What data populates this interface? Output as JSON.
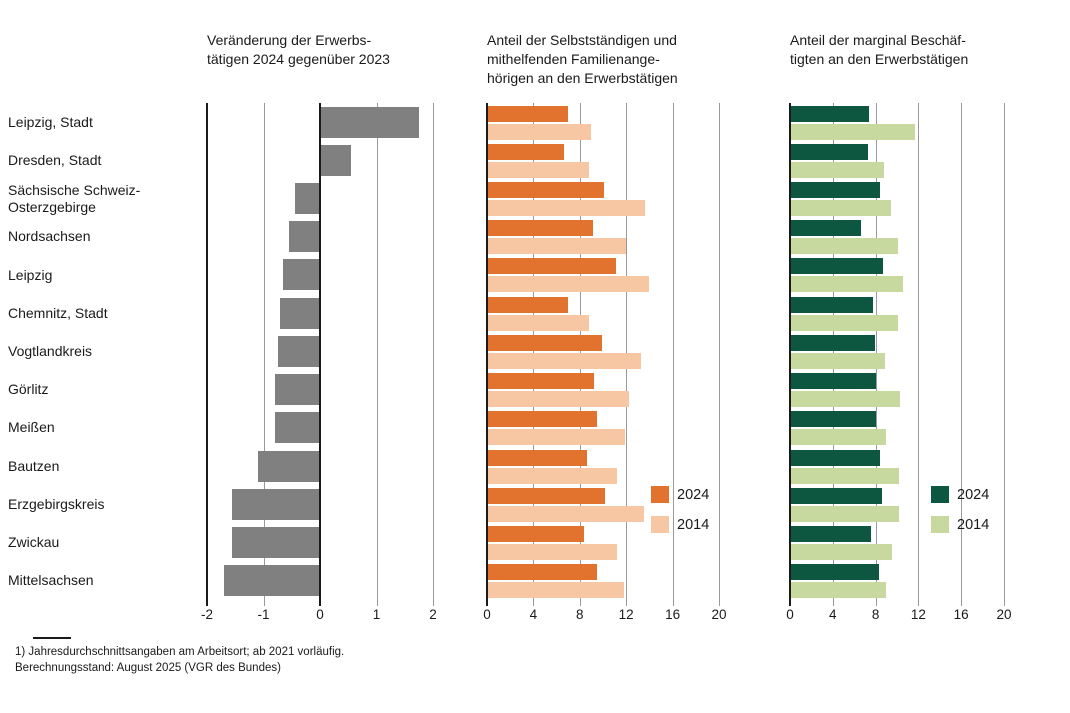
{
  "chart_data": [
    {
      "type": "bar",
      "orientation": "horizontal",
      "title": "Veränderung der Erwerbs-\ntätigen 2024 gegenüber 2023",
      "categories": [
        "Leipzig, Stadt",
        "Dresden, Stadt",
        "Sächsische Schweiz-\nOsterzgebirge",
        "Nordsachsen",
        "Leipzig",
        "Chemnitz, Stadt",
        "Vogtlandkreis",
        "Görlitz",
        "Meißen",
        "Bautzen",
        "Erzgebirgskreis",
        "Zwickau",
        "Mittelsachsen"
      ],
      "values": [
        1.75,
        0.55,
        -0.45,
        -0.55,
        -0.65,
        -0.7,
        -0.75,
        -0.8,
        -0.8,
        -1.1,
        -1.55,
        -1.55,
        -1.7
      ],
      "bar_color": "#808080",
      "xlim": [
        -2,
        2
      ],
      "xticks": [
        -2,
        -1,
        0,
        1,
        2
      ],
      "grid": true,
      "legend_position": "none"
    },
    {
      "type": "bar",
      "orientation": "horizontal",
      "title": "Anteil der Selbstständigen und\nmithelfenden Familienange-\nhörigen an den Erwerbstätigen",
      "categories": [
        "Leipzig, Stadt",
        "Dresden, Stadt",
        "Sächsische Schweiz-\nOsterzgebirge",
        "Nordsachsen",
        "Leipzig",
        "Chemnitz, Stadt",
        "Vogtlandkreis",
        "Görlitz",
        "Meißen",
        "Bautzen",
        "Erzgebirgskreis",
        "Zwickau",
        "Mittelsachsen"
      ],
      "series": [
        {
          "name": "2024",
          "color": "#e2732e",
          "values": [
            7.0,
            6.6,
            10.1,
            9.1,
            11.1,
            7.0,
            9.9,
            9.2,
            9.5,
            8.6,
            10.2,
            8.4,
            9.5
          ]
        },
        {
          "name": "2014",
          "color": "#f6c7a2",
          "values": [
            9.0,
            8.8,
            13.6,
            12.0,
            14.0,
            8.8,
            13.3,
            12.2,
            11.9,
            11.2,
            13.5,
            11.2,
            11.8
          ]
        }
      ],
      "xlim": [
        0,
        20
      ],
      "xticks": [
        0,
        4,
        8,
        12,
        16,
        20
      ],
      "grid": true,
      "legend_position": "inside-right"
    },
    {
      "type": "bar",
      "orientation": "horizontal",
      "title": "Anteil der marginal Beschäf-\ntigten an den Erwerbstätigen",
      "categories": [
        "Leipzig, Stadt",
        "Dresden, Stadt",
        "Sächsische Schweiz-\nOsterzgebirge",
        "Nordsachsen",
        "Leipzig",
        "Chemnitz, Stadt",
        "Vogtlandkreis",
        "Görlitz",
        "Meißen",
        "Bautzen",
        "Erzgebirgskreis",
        "Zwickau",
        "Mittelsachsen"
      ],
      "series": [
        {
          "name": "2024",
          "color": "#0d5740",
          "values": [
            7.4,
            7.3,
            8.4,
            6.6,
            8.7,
            7.8,
            7.9,
            8.0,
            8.0,
            8.4,
            8.6,
            7.6,
            8.3
          ]
        },
        {
          "name": "2014",
          "color": "#c8d9a0",
          "values": [
            11.7,
            8.8,
            9.4,
            10.1,
            10.6,
            10.1,
            8.9,
            10.3,
            9.0,
            10.2,
            10.2,
            9.5,
            9.0
          ]
        }
      ],
      "xlim": [
        0,
        20
      ],
      "xticks": [
        0,
        4,
        8,
        12,
        16,
        20
      ],
      "grid": true,
      "legend_position": "inside-right"
    }
  ],
  "colors": {
    "axis": "#1a1a1a",
    "gridline": "#9a9a9a",
    "background": "#ffffff"
  },
  "footer": {
    "note1": "1) Jahresdurchschnittsangaben am Arbeitsort; ab 2021 vorläufig.",
    "note2": "Berechnungsstand: August 2025 (VGR des Bundes)"
  }
}
